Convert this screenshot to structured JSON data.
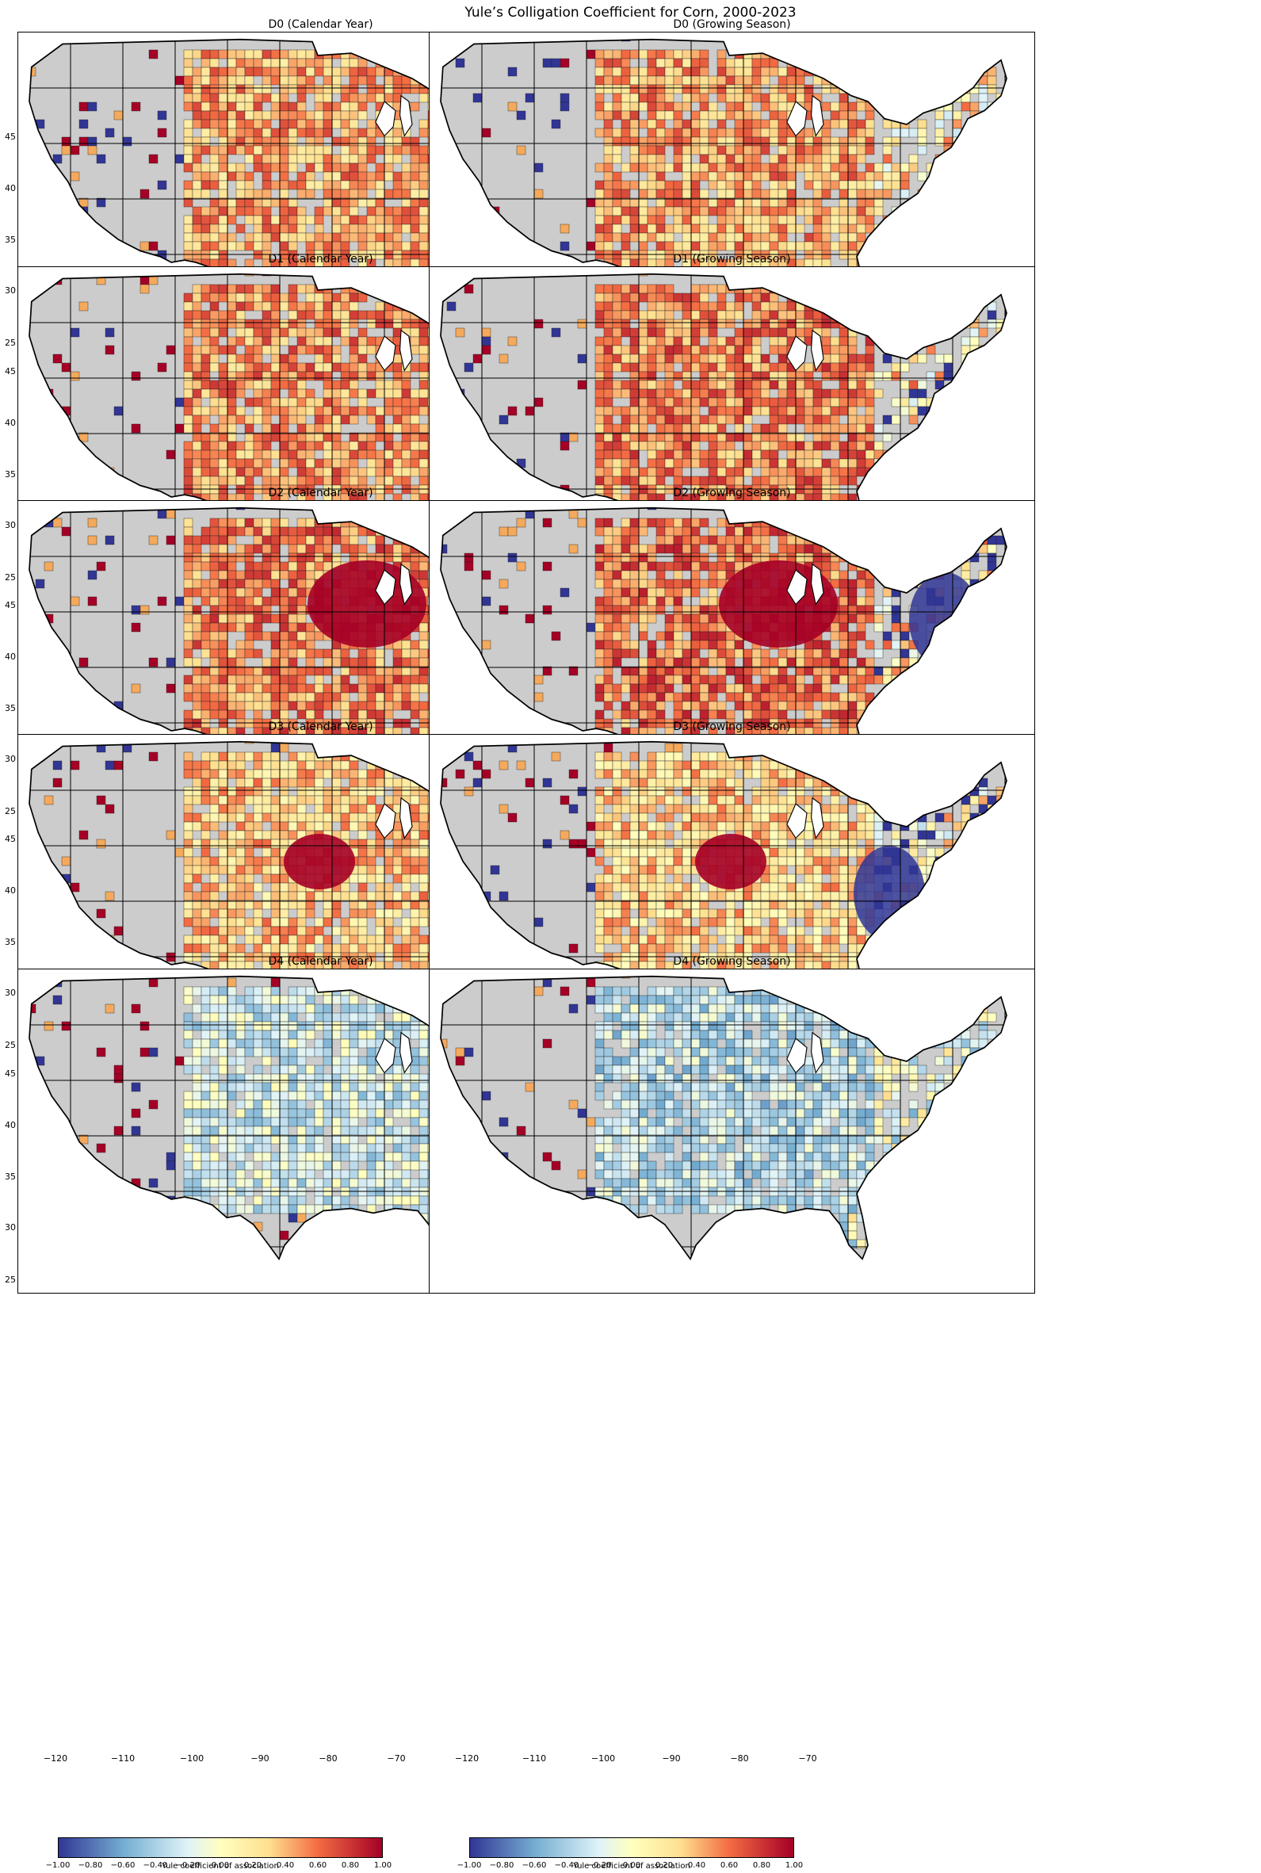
{
  "figure": {
    "title": "Yule’s Colligation Coefficient for Corn, 2000-2023"
  },
  "panels": [
    {
      "title": "D0 (Calendar Year)",
      "level": "D0",
      "period": "Calendar Year"
    },
    {
      "title": "D0 (Growing Season)",
      "level": "D0",
      "period": "Growing Season"
    },
    {
      "title": "D1 (Calendar Year)",
      "level": "D1",
      "period": "Calendar Year"
    },
    {
      "title": "D1 (Growing Season)",
      "level": "D1",
      "period": "Growing Season"
    },
    {
      "title": "D2 (Calendar Year)",
      "level": "D2",
      "period": "Calendar Year"
    },
    {
      "title": "D2 (Growing Season)",
      "level": "D2",
      "period": "Growing Season"
    },
    {
      "title": "D3 (Calendar Year)",
      "level": "D3",
      "period": "Calendar Year"
    },
    {
      "title": "D3 (Growing Season)",
      "level": "D3",
      "period": "Growing Season"
    },
    {
      "title": "D4 (Calendar Year)",
      "level": "D4",
      "period": "Calendar Year"
    },
    {
      "title": "D4 (Growing Season)",
      "level": "D4",
      "period": "Growing Season"
    }
  ],
  "axes": {
    "y_ticks": [
      "25",
      "30",
      "35",
      "40",
      "45"
    ],
    "x_ticks": [
      "−120",
      "−110",
      "−100",
      "−90",
      "−80",
      "−70"
    ]
  },
  "colorbar": {
    "label": "Yule coefficient of association",
    "ticks": [
      "−1.00",
      "−0.80",
      "−0.60",
      "−0.40",
      "−0.20",
      "0.00",
      "0.20",
      "0.40",
      "0.60",
      "0.80",
      "1.00"
    ],
    "range": [
      -1,
      1
    ],
    "colormap": "RdYlBu_r",
    "no_data_color": "#cccccc"
  },
  "colors": {
    "no_data": "#cccccc",
    "strong_negative": "#313695",
    "strong_positive": "#a50026",
    "warm_mid": "#f4a95c",
    "warm_light": "#fde4a0",
    "cool_light": "#cde8f3"
  }
}
